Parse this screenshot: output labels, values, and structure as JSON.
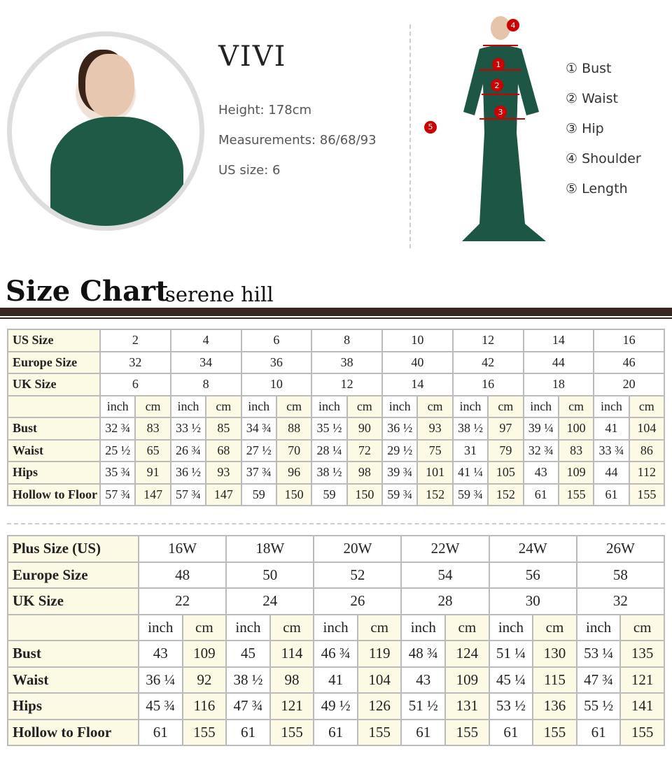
{
  "model": {
    "name": "VIVI",
    "height": "Height: 178cm",
    "measurements": "Measurements: 86/68/93",
    "us_size": "US size: 6"
  },
  "diagram": {
    "markers": [
      "1",
      "2",
      "3",
      "4",
      "5"
    ],
    "legend": [
      "① Bust",
      "② Waist",
      "③ Hip",
      "④ Shoulder",
      "⑤ Length"
    ],
    "accent": "#cc0000"
  },
  "header": {
    "title": "Size Chart",
    "subtitle": "serene hill"
  },
  "table1": {
    "size_rows": [
      [
        "US Size",
        "2",
        "4",
        "6",
        "8",
        "10",
        "12",
        "14",
        "16"
      ],
      [
        "Europe Size",
        "32",
        "34",
        "36",
        "38",
        "40",
        "42",
        "44",
        "46"
      ],
      [
        "UK Size",
        "6",
        "8",
        "10",
        "12",
        "14",
        "16",
        "18",
        "20"
      ]
    ],
    "units": [
      "inch",
      "cm"
    ],
    "rows": [
      [
        "Bust",
        "32 ¾",
        "83",
        "33 ½",
        "85",
        "34 ¾",
        "88",
        "35 ½",
        "90",
        "36 ½",
        "93",
        "38 ½",
        "97",
        "39 ¼",
        "100",
        "41",
        "104"
      ],
      [
        "Waist",
        "25 ½",
        "65",
        "26 ¾",
        "68",
        "27 ½",
        "70",
        "28 ¼",
        "72",
        "29 ½",
        "75",
        "31",
        "79",
        "32 ¾",
        "83",
        "33 ¾",
        "86"
      ],
      [
        "Hips",
        "35 ¾",
        "91",
        "36 ½",
        "93",
        "37 ¾",
        "96",
        "38 ½",
        "98",
        "39 ¾",
        "101",
        "41 ¼",
        "105",
        "43",
        "109",
        "44",
        "112"
      ],
      [
        "Hollow to Floor",
        "57 ¾",
        "147",
        "57 ¾",
        "147",
        "59",
        "150",
        "59",
        "150",
        "59 ¾",
        "152",
        "59 ¾",
        "152",
        "61",
        "155",
        "61",
        "155"
      ]
    ]
  },
  "table2": {
    "size_rows": [
      [
        "Plus Size (US)",
        "16W",
        "18W",
        "20W",
        "22W",
        "24W",
        "26W"
      ],
      [
        "Europe Size",
        "48",
        "50",
        "52",
        "54",
        "56",
        "58"
      ],
      [
        "UK Size",
        "22",
        "24",
        "26",
        "28",
        "30",
        "32"
      ]
    ],
    "units": [
      "inch",
      "cm"
    ],
    "rows": [
      [
        "Bust",
        "43",
        "109",
        "45",
        "114",
        "46 ¾",
        "119",
        "48 ¾",
        "124",
        "51 ¼",
        "130",
        "53 ¼",
        "135"
      ],
      [
        "Waist",
        "36 ¼",
        "92",
        "38 ½",
        "98",
        "41",
        "104",
        "43",
        "109",
        "45 ¼",
        "115",
        "47 ¾",
        "121"
      ],
      [
        "Hips",
        "45 ¾",
        "116",
        "47 ¾",
        "121",
        "49 ½",
        "126",
        "51 ½",
        "131",
        "53 ½",
        "136",
        "55 ½",
        "141"
      ],
      [
        "Hollow to Floor",
        "61",
        "155",
        "61",
        "155",
        "61",
        "155",
        "61",
        "155",
        "61",
        "155",
        "61",
        "155"
      ]
    ]
  }
}
